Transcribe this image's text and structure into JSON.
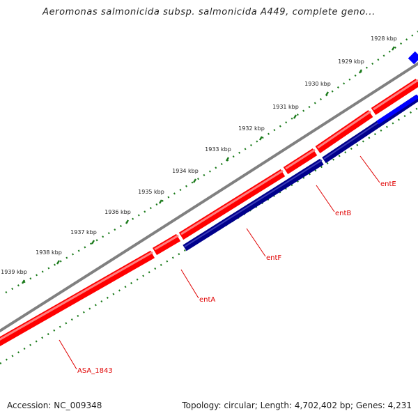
{
  "title": "Aeromonas salmonicida subsp. salmonicida A449, complete geno...",
  "ticks": [
    {
      "label": "1928 kbp"
    },
    {
      "label": "1929 kbp"
    },
    {
      "label": "1930 kbp"
    },
    {
      "label": "1931 kbp"
    },
    {
      "label": "1932 kbp"
    },
    {
      "label": "1933 kbp"
    },
    {
      "label": "1934 kbp"
    },
    {
      "label": "1935 kbp"
    },
    {
      "label": "1936 kbp"
    },
    {
      "label": "1937 kbp"
    },
    {
      "label": "1938 kbp"
    },
    {
      "label": "1939 kbp"
    }
  ],
  "gene_labels": [
    {
      "name": "entE"
    },
    {
      "name": "entB"
    },
    {
      "name": "entF"
    },
    {
      "name": "entA"
    },
    {
      "name": "ASA_1843"
    }
  ],
  "colors": {
    "forward_cds": "#ff0000",
    "reverse_cds": "#00008b",
    "highlight": "#0000ff",
    "backbone": "#808080",
    "ticks": "#1a7a1a",
    "label": "#e00000"
  },
  "footer": {
    "accession": "Accession: NC_009348",
    "summary": "Topology: circular; Length: 4,702,402 bp; Genes: 4,231"
  }
}
